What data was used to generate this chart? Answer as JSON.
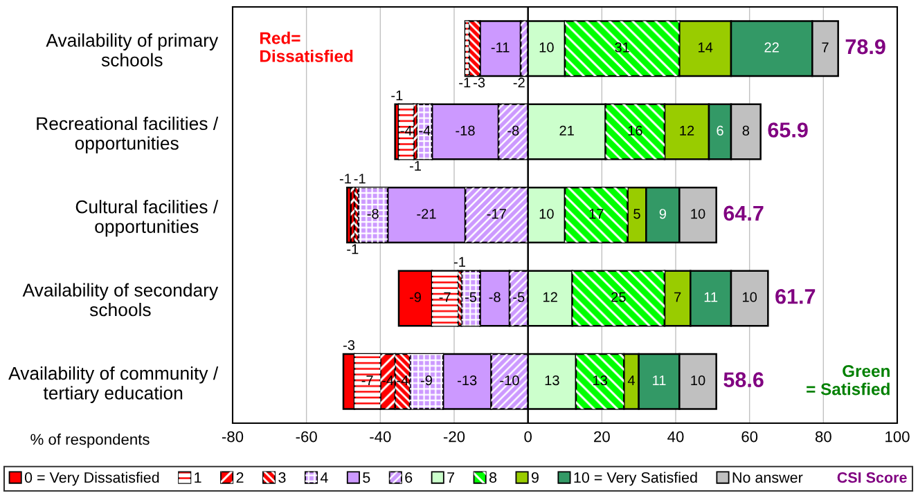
{
  "chart_data": {
    "type": "bar",
    "orientation": "horizontal",
    "stacked": true,
    "categories": [
      "Availability of primary\nschools",
      "Recreational facilities /\nopportunities",
      "Cultural facilities /\nopportunities",
      "Availability of secondary\nschools",
      "Availability of community /\ntertiary education"
    ],
    "xlabel": "% of respondents",
    "xlim": [
      -80,
      100
    ],
    "xticks": [
      -80,
      -60,
      -40,
      -20,
      0,
      20,
      40,
      60,
      80,
      100
    ],
    "grid": "x",
    "legend": "bottom",
    "data_labels": true,
    "annotations": [
      "Red=\nDissatisfied",
      "Green\n= Satisfied",
      "CSI Score",
      {
        "text": "78.9",
        "x": 84,
        "y": "Availability of primary\nschools"
      },
      {
        "text": "65.9",
        "x": 63,
        "y": "Recreational facilities /\nopportunities"
      },
      {
        "text": "64.7",
        "x": 51,
        "y": "Cultural facilities /\nopportunities"
      },
      {
        "text": "61.7",
        "x": 65,
        "y": "Availability of secondary\nschools"
      },
      {
        "text": "58.6",
        "x": 51,
        "y": "Availability of community /\ntertiary education"
      }
    ],
    "ref_lines": [
      {
        "axis": "x",
        "value": 0,
        "color": "#000000"
      }
    ],
    "series": [
      {
        "name": "6",
        "color": "#cc99ff",
        "values": [
          -2,
          -8,
          -17,
          -5,
          -10
        ]
      },
      {
        "name": "5",
        "color": "#cc99ff",
        "values": [
          -11,
          -18,
          -21,
          -8,
          -13
        ]
      },
      {
        "name": "4",
        "color": "#cc99ff",
        "values": [
          null,
          -4,
          -8,
          -5,
          -9
        ]
      },
      {
        "name": "3",
        "color": "#ff0000",
        "values": [
          -3,
          null,
          -1,
          -1,
          -4
        ]
      },
      {
        "name": "2",
        "color": "#ff0000",
        "values": [
          null,
          -1,
          -1,
          null,
          -4
        ]
      },
      {
        "name": "1",
        "color": "#ff0000",
        "values": [
          -1,
          -4,
          null,
          -7,
          -7
        ]
      },
      {
        "name": "0 = Very Dissatisfied",
        "color": "#ff0000",
        "values": [
          null,
          -1,
          -1,
          -9,
          -3
        ]
      },
      {
        "name": "7",
        "color": "#ccffcc",
        "values": [
          10,
          21,
          10,
          12,
          13
        ]
      },
      {
        "name": "8",
        "color": "#00ff00",
        "values": [
          31,
          16,
          17,
          25,
          13
        ]
      },
      {
        "name": "9",
        "color": "#99cc00",
        "values": [
          14,
          12,
          5,
          7,
          4
        ]
      },
      {
        "name": "10 = Very Satisfied",
        "color": "#339966",
        "values": [
          22,
          6,
          9,
          11,
          11
        ]
      },
      {
        "name": "No answer",
        "color": "#c0c0c0",
        "values": [
          7,
          8,
          10,
          10,
          10
        ]
      }
    ]
  }
}
